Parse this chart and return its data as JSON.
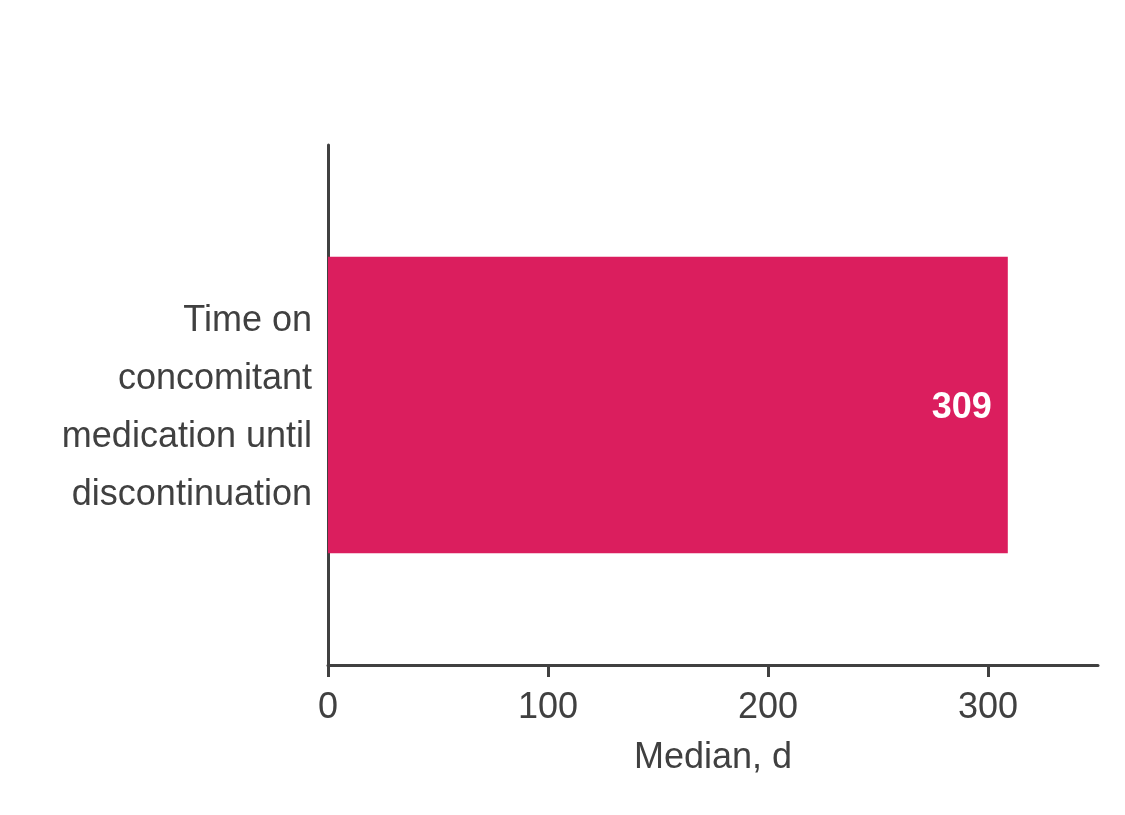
{
  "chart_data": {
    "type": "bar",
    "orientation": "horizontal",
    "xlabel": "Median, d",
    "categories": [
      "Time on concomitant medication until discontinuation"
    ],
    "values": [
      309
    ],
    "color": "#db1e5e",
    "data_labels": true,
    "xlim": [
      0,
      350
    ],
    "xticks": [
      0,
      100,
      200,
      300
    ],
    "grid": false
  }
}
